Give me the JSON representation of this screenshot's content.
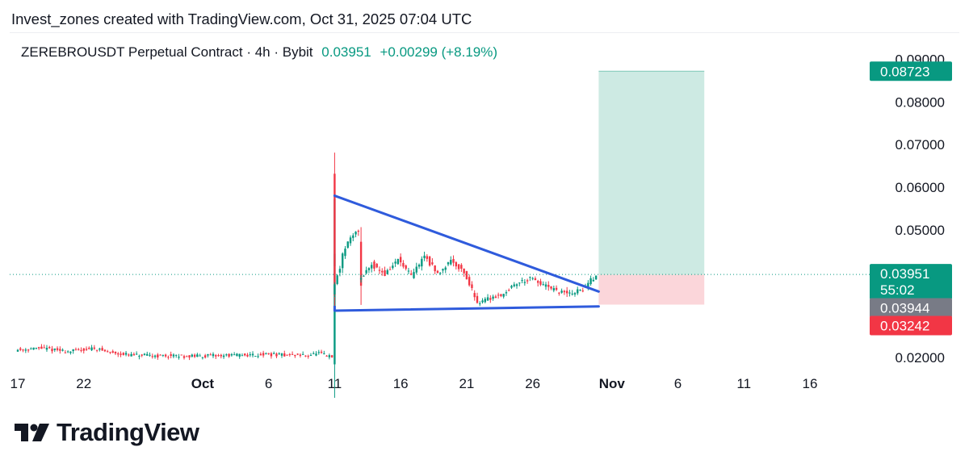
{
  "header": {
    "credit": "Invest_zones created with TradingView.com, Oct 31, 2025 07:04 UTC"
  },
  "symbol": {
    "name": "ZEREBROUSDT Perpetual Contract · 4h · Bybit",
    "price": "0.03951",
    "change": "+0.00299 (+8.19%)"
  },
  "colors": {
    "up": "#089981",
    "down": "#f23645",
    "pattern_line": "#2f5bdc",
    "profit_zone": "#cdeae3",
    "loss_zone": "#fbd6da",
    "last_price_label": "#089981",
    "entry_label": "#787b86",
    "stop_label": "#f23645"
  },
  "chart_data": {
    "type": "candlestick",
    "title": "",
    "xlabel": "",
    "ylabel": "",
    "x_ticks": [
      "17",
      "22",
      "Oct",
      "6",
      "11",
      "16",
      "21",
      "26",
      "Nov",
      "6",
      "11",
      "16"
    ],
    "x_ticks_bold": [
      "Oct",
      "Nov"
    ],
    "y_ticks": [
      "0.09000",
      "0.08000",
      "0.07000",
      "0.06000",
      "0.05000",
      "0.02000"
    ],
    "ylim": [
      0.0185,
      0.0905
    ],
    "price_path": [
      {
        "date": "Sep 17",
        "price": 0.0218
      },
      {
        "date": "Sep 19",
        "price": 0.0222
      },
      {
        "date": "Sep 21",
        "price": 0.0214
      },
      {
        "date": "Sep 22",
        "price": 0.0218
      },
      {
        "date": "Sep 23",
        "price": 0.0222
      },
      {
        "date": "Sep 24",
        "price": 0.0213
      },
      {
        "date": "Sep 26",
        "price": 0.0205
      },
      {
        "date": "Sep 30",
        "price": 0.0203
      },
      {
        "date": "Oct 3",
        "price": 0.0205
      },
      {
        "date": "Oct 6",
        "price": 0.0207
      },
      {
        "date": "Oct 9",
        "price": 0.0205
      },
      {
        "date": "Oct 10",
        "price": 0.021
      },
      {
        "date": "Oct 11",
        "price": 0.02
      },
      {
        "date": "Oct 11",
        "price": 0.042
      },
      {
        "date": "Oct 11",
        "price": 0.0575
      },
      {
        "date": "Oct 11",
        "price": 0.035
      },
      {
        "date": "Oct 12",
        "price": 0.046
      },
      {
        "date": "Oct 13",
        "price": 0.05
      },
      {
        "date": "Oct 13",
        "price": 0.038
      },
      {
        "date": "Oct 14",
        "price": 0.042
      },
      {
        "date": "Oct 15",
        "price": 0.0395
      },
      {
        "date": "Oct 16",
        "price": 0.043
      },
      {
        "date": "Oct 17",
        "price": 0.039
      },
      {
        "date": "Oct 18",
        "price": 0.044
      },
      {
        "date": "Oct 19",
        "price": 0.0395
      },
      {
        "date": "Oct 20",
        "price": 0.043
      },
      {
        "date": "Oct 21",
        "price": 0.04
      },
      {
        "date": "Oct 22",
        "price": 0.033
      },
      {
        "date": "Oct 23",
        "price": 0.034
      },
      {
        "date": "Oct 24",
        "price": 0.035
      },
      {
        "date": "Oct 25",
        "price": 0.0375
      },
      {
        "date": "Oct 26",
        "price": 0.0385
      },
      {
        "date": "Oct 27",
        "price": 0.037
      },
      {
        "date": "Oct 28",
        "price": 0.0355
      },
      {
        "date": "Oct 29",
        "price": 0.035
      },
      {
        "date": "Oct 30",
        "price": 0.036
      },
      {
        "date": "Oct 31",
        "price": 0.0395
      }
    ],
    "triangle": {
      "upper": [
        {
          "date": "Oct 11",
          "price": 0.058
        },
        {
          "date": "Oct 31",
          "price": 0.0355
        }
      ],
      "lower": [
        {
          "date": "Oct 11",
          "price": 0.031
        },
        {
          "date": "Oct 31",
          "price": 0.032
        }
      ]
    },
    "position": {
      "from": "Oct 31",
      "to": "Nov 8",
      "target": 0.08723,
      "entry": 0.03944,
      "stop": 0.03242
    },
    "last_price": 0.03951,
    "price_labels": {
      "target": "0.08723",
      "last": "0.03951",
      "countdown": "55:02",
      "entry": "0.03944",
      "stop": "0.03242"
    }
  },
  "brand": {
    "logo_text": "TradingView"
  }
}
